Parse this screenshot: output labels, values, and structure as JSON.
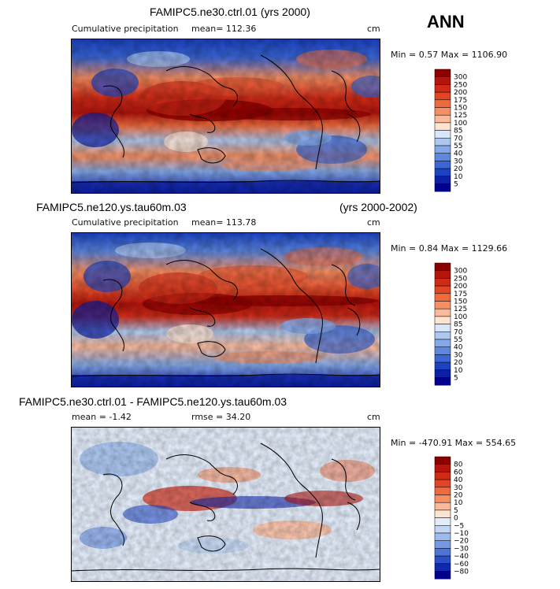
{
  "season_label": "ANN",
  "panels": [
    {
      "title": "FAMIPC5.ne30.ctrl.01 (yrs 2000)",
      "title_extra": "",
      "left_stat": "Cumulative precipitation",
      "mid_stat": "mean= 112.36",
      "units": "cm",
      "minmax": "Min =   0.57 Max = 1106.90",
      "colorbar": {
        "levels": [
          "300",
          "250",
          "200",
          "175",
          "150",
          "125",
          "100",
          "85",
          "70",
          "55",
          "40",
          "30",
          "20",
          "10",
          "5"
        ],
        "colors": [
          "#8b0000",
          "#b3140c",
          "#cf2b17",
          "#e04626",
          "#ef6b3e",
          "#f68f62",
          "#fbb99a",
          "#fde4d2",
          "#d7e6f8",
          "#adc8f0",
          "#84a9e8",
          "#5e87de",
          "#3b66d4",
          "#1a43c4",
          "#0c1fa6",
          "#00008c"
        ]
      }
    },
    {
      "title": "FAMIPC5.ne120.ys.tau60m.03",
      "title_extra": "(yrs 2000-2002)",
      "left_stat": "Cumulative precipitation",
      "mid_stat": "mean= 113.78",
      "units": "cm",
      "minmax": "Min =   0.84 Max = 1129.66",
      "colorbar": {
        "levels": [
          "300",
          "250",
          "200",
          "175",
          "150",
          "125",
          "100",
          "85",
          "70",
          "55",
          "40",
          "30",
          "20",
          "10",
          "5"
        ],
        "colors": [
          "#8b0000",
          "#b3140c",
          "#cf2b17",
          "#e04626",
          "#ef6b3e",
          "#f68f62",
          "#fbb99a",
          "#fde4d2",
          "#d7e6f8",
          "#adc8f0",
          "#84a9e8",
          "#5e87de",
          "#3b66d4",
          "#1a43c4",
          "#0c1fa6",
          "#00008c"
        ]
      }
    },
    {
      "title": "FAMIPC5.ne30.ctrl.01 - FAMIPC5.ne120.ys.tau60m.03",
      "title_extra": "",
      "left_stat": "mean =   -1.42",
      "mid_stat": "rmse =   34.20",
      "units": "cm",
      "minmax": "Min = -470.91 Max =  554.65",
      "colorbar": {
        "levels": [
          "80",
          "60",
          "40",
          "30",
          "20",
          "10",
          "5",
          "0",
          "−5",
          "−10",
          "−20",
          "−30",
          "−40",
          "−60",
          "−80"
        ],
        "colors": [
          "#8b0000",
          "#b3140c",
          "#cf2b17",
          "#e04626",
          "#ef6b3e",
          "#f68f62",
          "#fbb99a",
          "#fde4d2",
          "#e3edfa",
          "#c3d6f4",
          "#9dbbec",
          "#7498e2",
          "#4d74d7",
          "#2a4fc9",
          "#1028ad",
          "#00008c"
        ]
      }
    }
  ]
}
